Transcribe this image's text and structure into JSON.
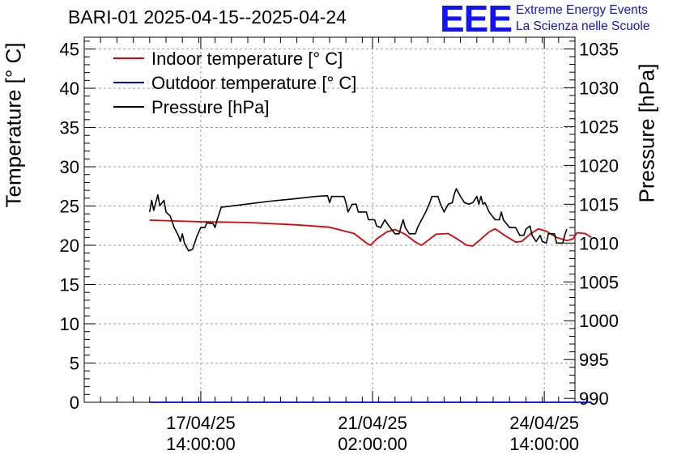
{
  "chart_data": {
    "type": "line",
    "title": "BARI-01 2025-04-15--2025-04-24",
    "ylabel_left": "Temperature [° C]",
    "ylabel_right": "Pressure [hPa]",
    "ylim_left": [
      0,
      46.5
    ],
    "ylim_right": [
      989.5,
      1036.5
    ],
    "xlim": [
      "2025-04-15 05:00",
      "2025-04-25 05:00"
    ],
    "grid": true,
    "legend_position": "top-left",
    "yticks_left": [
      "0",
      "5",
      "10",
      "15",
      "20",
      "25",
      "30",
      "35",
      "40",
      "45"
    ],
    "yticks_right": [
      "990",
      "995",
      "1000",
      "1005",
      "1010",
      "1015",
      "1020",
      "1025",
      "1030",
      "1035"
    ],
    "xticks": [
      {
        "date": "17/04/25",
        "time": "14:00:00",
        "at": "2025-04-17 14:00"
      },
      {
        "date": "21/04/25",
        "time": "02:00:00",
        "at": "2025-04-21 02:00"
      },
      {
        "date": "24/04/25",
        "time": "14:00:00",
        "at": "2025-04-24 14:00"
      }
    ],
    "series": [
      {
        "name": "Indoor temperature [° C]",
        "axis": "left",
        "color": "#e00000",
        "points": [
          [
            "2025-04-16 13:00",
            23.2
          ],
          [
            "2025-04-17 13:00",
            23.0
          ],
          [
            "2025-04-18 13:00",
            22.9
          ],
          [
            "2025-04-19 13:00",
            22.6
          ],
          [
            "2025-04-20 05:00",
            22.3
          ],
          [
            "2025-04-20 17:00",
            21.5
          ],
          [
            "2025-04-20 23:00",
            20.3
          ],
          [
            "2025-04-21 01:00",
            20.0
          ],
          [
            "2025-04-21 04:00",
            20.8
          ],
          [
            "2025-04-21 09:00",
            21.7
          ],
          [
            "2025-04-21 13:00",
            22.0
          ],
          [
            "2025-04-21 18:00",
            21.4
          ],
          [
            "2025-04-21 23:00",
            20.4
          ],
          [
            "2025-04-22 02:00",
            20.0
          ],
          [
            "2025-04-22 06:00",
            20.8
          ],
          [
            "2025-04-22 09:00",
            21.4
          ],
          [
            "2025-04-22 15:00",
            21.5
          ],
          [
            "2025-04-22 20:00",
            20.7
          ],
          [
            "2025-04-23 00:00",
            20.0
          ],
          [
            "2025-04-23 03:00",
            19.9
          ],
          [
            "2025-04-23 07:00",
            20.8
          ],
          [
            "2025-04-23 11:00",
            21.7
          ],
          [
            "2025-04-23 14:00",
            22.1
          ],
          [
            "2025-04-23 19:00",
            21.2
          ],
          [
            "2025-04-24 00:00",
            20.4
          ],
          [
            "2025-04-24 03:00",
            20.5
          ],
          [
            "2025-04-24 07:00",
            21.4
          ],
          [
            "2025-04-24 11:00",
            22.1
          ],
          [
            "2025-04-24 15:00",
            21.8
          ],
          [
            "2025-04-24 20:00",
            21.0
          ],
          [
            "2025-04-25 01:00",
            20.6
          ],
          [
            "2025-04-25 04:00",
            20.8
          ],
          [
            "2025-04-25 06:00",
            21.6
          ],
          [
            "2025-04-25 10:00",
            21.5
          ],
          [
            "2025-04-25 13:00",
            21.0
          ]
        ]
      },
      {
        "name": "Outdoor temperature [° C]",
        "axis": "left",
        "color": "#0000e0",
        "points": [
          [
            "2025-04-16 13:00",
            0.0
          ],
          [
            "2025-04-25 13:00",
            0.0
          ]
        ]
      },
      {
        "name": "Pressure [hPa]",
        "axis": "right",
        "color": "#000000",
        "points": [
          [
            "2025-04-16 13:00",
            1014.0
          ],
          [
            "2025-04-16 14:00",
            1015.5
          ],
          [
            "2025-04-16 15:00",
            1014.2
          ],
          [
            "2025-04-16 17:00",
            1016.2
          ],
          [
            "2025-04-16 18:00",
            1014.8
          ],
          [
            "2025-04-16 20:00",
            1015.5
          ],
          [
            "2025-04-16 21:00",
            1014.0
          ],
          [
            "2025-04-16 23:00",
            1013.5
          ],
          [
            "2025-04-17 01:00",
            1012.0
          ],
          [
            "2025-04-17 03:00",
            1011.0
          ],
          [
            "2025-04-17 04:00",
            1010.2
          ],
          [
            "2025-04-17 05:00",
            1011.2
          ],
          [
            "2025-04-17 06:00",
            1010.0
          ],
          [
            "2025-04-17 08:00",
            1009.0
          ],
          [
            "2025-04-17 10:00",
            1009.2
          ],
          [
            "2025-04-17 12:00",
            1010.8
          ],
          [
            "2025-04-17 14:00",
            1012.0
          ],
          [
            "2025-04-17 16:00",
            1012.0
          ],
          [
            "2025-04-17 17:00",
            1012.6
          ],
          [
            "2025-04-17 20:00",
            1012.5
          ],
          [
            "2025-04-17 21:00",
            1012.0
          ],
          [
            "2025-04-17 22:00",
            1013.0
          ],
          [
            "2025-04-18 00:00",
            1014.6
          ],
          [
            "2025-04-18 12:00",
            1015.0
          ],
          [
            "2025-04-19 00:00",
            1015.4
          ],
          [
            "2025-04-19 12:00",
            1015.7
          ],
          [
            "2025-04-19 22:00",
            1016.0
          ],
          [
            "2025-04-20 04:00",
            1016.1
          ],
          [
            "2025-04-20 05:00",
            1015.2
          ],
          [
            "2025-04-20 06:00",
            1016.0
          ],
          [
            "2025-04-20 12:00",
            1016.0
          ],
          [
            "2025-04-20 13:00",
            1015.2
          ],
          [
            "2025-04-20 14:00",
            1014.0
          ],
          [
            "2025-04-20 16:00",
            1015.0
          ],
          [
            "2025-04-20 18:00",
            1015.0
          ],
          [
            "2025-04-20 19:00",
            1014.0
          ],
          [
            "2025-04-20 23:00",
            1014.0
          ],
          [
            "2025-04-21 00:00",
            1013.0
          ],
          [
            "2025-04-21 03:00",
            1013.0
          ],
          [
            "2025-04-21 04:00",
            1012.2
          ],
          [
            "2025-04-21 06:00",
            1012.0
          ],
          [
            "2025-04-21 08:00",
            1013.0
          ],
          [
            "2025-04-21 10:00",
            1012.2
          ],
          [
            "2025-04-21 13:00",
            1011.2
          ],
          [
            "2025-04-21 15:00",
            1011.2
          ],
          [
            "2025-04-21 16:00",
            1012.2
          ],
          [
            "2025-04-21 17:00",
            1013.0
          ],
          [
            "2025-04-21 18:00",
            1012.0
          ],
          [
            "2025-04-21 20:00",
            1011.2
          ],
          [
            "2025-04-21 23:00",
            1011.2
          ],
          [
            "2025-04-22 00:00",
            1012.0
          ],
          [
            "2025-04-22 02:00",
            1013.0
          ],
          [
            "2025-04-22 04:00",
            1014.0
          ],
          [
            "2025-04-22 06:00",
            1015.2
          ],
          [
            "2025-04-22 07:00",
            1016.0
          ],
          [
            "2025-04-22 10:00",
            1016.0
          ],
          [
            "2025-04-22 11:00",
            1015.2
          ],
          [
            "2025-04-22 13:00",
            1014.0
          ],
          [
            "2025-04-22 15:00",
            1015.0
          ],
          [
            "2025-04-22 17:00",
            1015.2
          ],
          [
            "2025-04-22 18:00",
            1016.3
          ],
          [
            "2025-04-22 19:00",
            1017.0
          ],
          [
            "2025-04-22 21:00",
            1016.0
          ],
          [
            "2025-04-22 23:00",
            1015.2
          ],
          [
            "2025-04-23 01:00",
            1015.0
          ],
          [
            "2025-04-23 03:00",
            1015.2
          ],
          [
            "2025-04-23 05:00",
            1016.0
          ],
          [
            "2025-04-23 06:00",
            1015.0
          ],
          [
            "2025-04-23 07:00",
            1016.0
          ],
          [
            "2025-04-23 08:00",
            1015.0
          ],
          [
            "2025-04-23 09:00",
            1015.2
          ],
          [
            "2025-04-23 11:00",
            1014.0
          ],
          [
            "2025-04-23 14:00",
            1013.0
          ],
          [
            "2025-04-23 16:00",
            1013.0
          ],
          [
            "2025-04-23 17:00",
            1014.0
          ],
          [
            "2025-04-23 18:00",
            1013.0
          ],
          [
            "2025-04-23 21:00",
            1012.0
          ],
          [
            "2025-04-23 23:00",
            1012.0
          ],
          [
            "2025-04-24 00:00",
            1012.0
          ],
          [
            "2025-04-24 02:00",
            1011.0
          ],
          [
            "2025-04-24 04:00",
            1011.0
          ],
          [
            "2025-04-24 05:00",
            1011.8
          ],
          [
            "2025-04-24 07:00",
            1012.2
          ],
          [
            "2025-04-24 08:00",
            1011.0
          ],
          [
            "2025-04-24 10:00",
            1010.2
          ],
          [
            "2025-04-24 12:00",
            1011.0
          ],
          [
            "2025-04-24 13:00",
            1010.2
          ],
          [
            "2025-04-24 15:00",
            1010.0
          ],
          [
            "2025-04-24 16:00",
            1011.2
          ],
          [
            "2025-04-24 19:00",
            1011.2
          ],
          [
            "2025-04-24 20:00",
            1010.0
          ],
          [
            "2025-04-24 23:00",
            1010.0
          ],
          [
            "2025-04-25 00:00",
            1011.0
          ],
          [
            "2025-04-25 01:00",
            1011.8
          ]
        ]
      }
    ]
  },
  "branding": {
    "logo": "EEE",
    "line1": "Extreme Energy Events",
    "line2": "La Scienza nelle Scuole"
  },
  "colors": {
    "frame": "#000000",
    "grid": "#9c9c9c",
    "brand": "#1414c8"
  }
}
